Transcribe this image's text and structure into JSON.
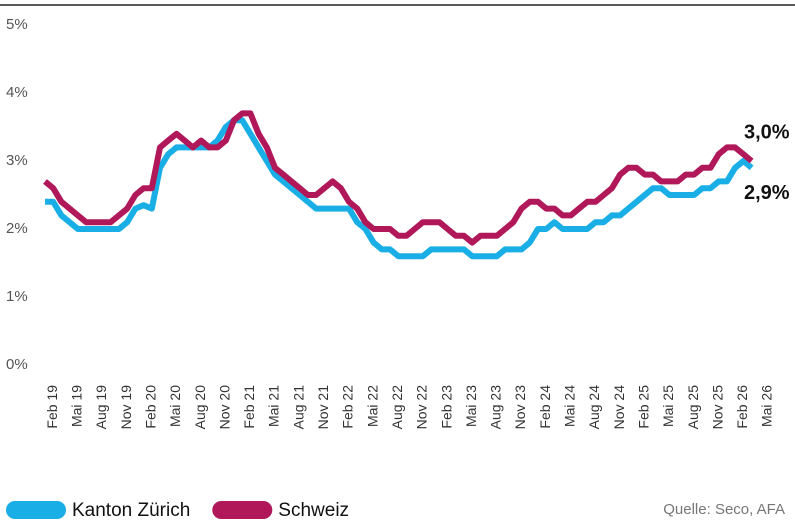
{
  "chart_data": {
    "type": "line",
    "source": "Quelle: Seco, AFA",
    "categories": [
      null,
      "Feb 19",
      null,
      null,
      "Mai 19",
      null,
      null,
      "Aug 19",
      null,
      null,
      "Nov 19",
      null,
      null,
      "Feb 20",
      null,
      null,
      "Mai 20",
      null,
      null,
      "Aug 20",
      null,
      null,
      "Nov 20",
      null,
      null,
      "Feb 21",
      null,
      null,
      "Mai 21",
      null,
      null,
      "Aug 21",
      null,
      null,
      "Nov 21",
      null,
      null,
      "Feb 22",
      null,
      null,
      "Mai 22",
      null,
      null,
      "Aug 22",
      null,
      null,
      "Nov 22",
      null,
      null,
      "Feb 23",
      null,
      null,
      "Mai 23",
      null,
      null,
      "Aug 23",
      null,
      null,
      "Nov 23",
      null,
      null,
      "Feb 24",
      null,
      null,
      "Mai 24",
      null,
      null,
      "Aug 24",
      null,
      null,
      "Nov 24",
      null,
      null,
      "Feb 25",
      null,
      null,
      "Mai 25",
      null,
      null,
      "Aug 25",
      null,
      null,
      "Nov 25",
      null,
      null,
      "Feb 26",
      null,
      null,
      "Mai 26"
    ],
    "series": [
      {
        "name": "Kanton Zürich",
        "color": "#1aaee6",
        "end_label": "2,9%",
        "values": [
          2.4,
          2.4,
          2.2,
          2.1,
          2.0,
          2.0,
          2.0,
          2.0,
          2.0,
          2.0,
          2.1,
          2.3,
          2.35,
          2.3,
          2.9,
          3.1,
          3.2,
          3.2,
          3.2,
          3.2,
          3.2,
          3.3,
          3.5,
          3.6,
          3.6,
          3.4,
          3.2,
          3.0,
          2.8,
          2.7,
          2.6,
          2.5,
          2.4,
          2.3,
          2.3,
          2.3,
          2.3,
          2.3,
          2.1,
          2.0,
          1.8,
          1.7,
          1.7,
          1.6,
          1.6,
          1.6,
          1.6,
          1.7,
          1.7,
          1.7,
          1.7,
          1.7,
          1.6,
          1.6,
          1.6,
          1.6,
          1.7,
          1.7,
          1.7,
          1.8,
          2.0,
          2.0,
          2.1,
          2.0,
          2.0,
          2.0,
          2.0,
          2.1,
          2.1,
          2.2,
          2.2,
          2.3,
          2.4,
          2.5,
          2.6,
          2.6,
          2.5,
          2.5,
          2.5,
          2.5,
          2.6,
          2.6,
          2.7,
          2.7,
          2.9,
          3.0,
          2.9,
          null,
          null
        ]
      },
      {
        "name": "Schweiz",
        "color": "#b0185a",
        "end_label": "3,0%",
        "values": [
          2.7,
          2.6,
          2.4,
          2.3,
          2.2,
          2.1,
          2.1,
          2.1,
          2.1,
          2.2,
          2.3,
          2.5,
          2.6,
          2.6,
          3.2,
          3.3,
          3.4,
          3.3,
          3.2,
          3.3,
          3.2,
          3.2,
          3.3,
          3.6,
          3.7,
          3.7,
          3.4,
          3.2,
          2.9,
          2.8,
          2.7,
          2.6,
          2.5,
          2.5,
          2.6,
          2.7,
          2.6,
          2.4,
          2.3,
          2.1,
          2.0,
          2.0,
          2.0,
          1.9,
          1.9,
          2.0,
          2.1,
          2.1,
          2.1,
          2.0,
          1.9,
          1.9,
          1.8,
          1.9,
          1.9,
          1.9,
          2.0,
          2.1,
          2.3,
          2.4,
          2.4,
          2.3,
          2.3,
          2.2,
          2.2,
          2.3,
          2.4,
          2.4,
          2.5,
          2.6,
          2.8,
          2.9,
          2.9,
          2.8,
          2.8,
          2.7,
          2.7,
          2.7,
          2.8,
          2.8,
          2.9,
          2.9,
          3.1,
          3.2,
          3.2,
          3.1,
          3.0,
          null,
          null
        ]
      }
    ],
    "ylim": [
      0,
      5
    ],
    "yticks": [
      {
        "value": 0,
        "label": "0%"
      },
      {
        "value": 1,
        "label": "1%"
      },
      {
        "value": 2,
        "label": "2%"
      },
      {
        "value": 3,
        "label": "3%"
      },
      {
        "value": 4,
        "label": "4%"
      },
      {
        "value": 5,
        "label": "5%"
      }
    ],
    "grid": false
  }
}
